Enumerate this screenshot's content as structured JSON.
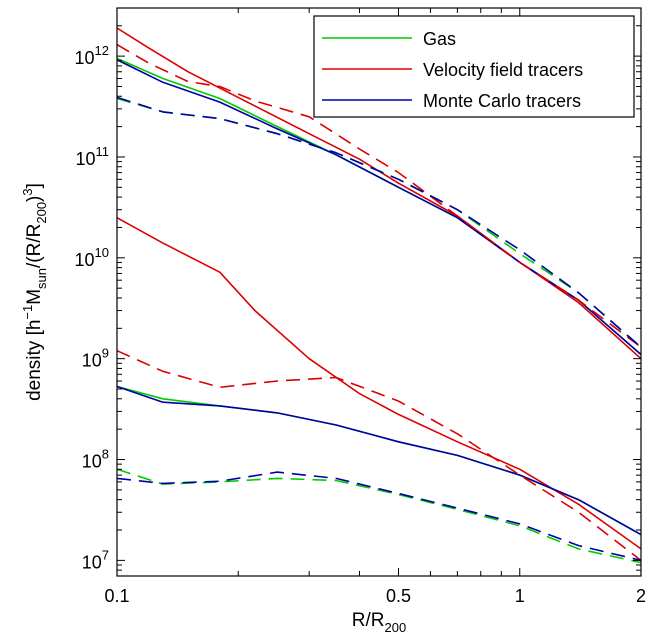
{
  "chart_data": {
    "type": "line",
    "xscale": "log",
    "yscale": "log",
    "xlim": [
      0.1,
      2
    ],
    "ylim": [
      7000000.0,
      3000000000000.0
    ],
    "xlabel": "R/R",
    "xlabel_sub": "200",
    "ylabel_parts": {
      "a": "density [h",
      "sup1": "−1",
      "b": "M",
      "sub1": "sun",
      "c": "/(R/R",
      "sub2": "200",
      "d": ")",
      "sup2": "3",
      "e": "]"
    },
    "x_ticks": [
      {
        "value": 0.1,
        "label": "0.1"
      },
      {
        "value": 0.5,
        "label": "0.5"
      },
      {
        "value": 1,
        "label": "1"
      },
      {
        "value": 2,
        "label": "2"
      }
    ],
    "y_ticks": [
      {
        "value": 10000000.0,
        "base": "10",
        "exp": "7"
      },
      {
        "value": 100000000.0,
        "base": "10",
        "exp": "8"
      },
      {
        "value": 1000000000.0,
        "base": "10",
        "exp": "9"
      },
      {
        "value": 10000000000.0,
        "base": "10",
        "exp": "10"
      },
      {
        "value": 100000000000.0,
        "base": "10",
        "exp": "11"
      },
      {
        "value": 1000000000000.0,
        "base": "10",
        "exp": "12"
      }
    ],
    "grid": false,
    "legend_position": "top-right",
    "legend": [
      {
        "label": "Gas",
        "color": "#00cc00"
      },
      {
        "label": "Velocity field tracers",
        "color": "#dd0000"
      },
      {
        "label": "Monte Carlo tracers",
        "color": "#0000aa"
      }
    ],
    "series": [
      {
        "color": "#00cc00",
        "dash": "solid",
        "points": [
          [
            0.1,
            950000000000.0
          ],
          [
            0.13,
            600000000000.0
          ],
          [
            0.18,
            380000000000.0
          ],
          [
            0.25,
            200000000000.0
          ],
          [
            0.35,
            105000000000.0
          ],
          [
            0.5,
            50000000000.0
          ],
          [
            0.7,
            25000000000.0
          ],
          [
            1.0,
            9000000000.0
          ],
          [
            1.4,
            3800000000.0
          ],
          [
            2.0,
            1100000000.0
          ]
        ]
      },
      {
        "color": "#dd0000",
        "dash": "solid",
        "points": [
          [
            0.1,
            1900000000000.0
          ],
          [
            0.12,
            1200000000000.0
          ],
          [
            0.15,
            700000000000.0
          ],
          [
            0.2,
            390000000000.0
          ],
          [
            0.3,
            170000000000.0
          ],
          [
            0.4,
            95000000000.0
          ],
          [
            0.5,
            55000000000.0
          ],
          [
            0.7,
            26000000000.0
          ],
          [
            1.0,
            9000000000.0
          ],
          [
            1.4,
            3600000000.0
          ],
          [
            2.0,
            1000000000.0
          ]
        ]
      },
      {
        "color": "#0000aa",
        "dash": "solid",
        "points": [
          [
            0.1,
            920000000000.0
          ],
          [
            0.13,
            550000000000.0
          ],
          [
            0.18,
            350000000000.0
          ],
          [
            0.25,
            190000000000.0
          ],
          [
            0.35,
            105000000000.0
          ],
          [
            0.5,
            50000000000.0
          ],
          [
            0.7,
            25000000000.0
          ],
          [
            1.0,
            9000000000.0
          ],
          [
            1.4,
            3800000000.0
          ],
          [
            2.0,
            1100000000.0
          ]
        ]
      },
      {
        "color": "#00cc00",
        "dash": "dashed",
        "points": [
          [
            0.1,
            380000000000.0
          ],
          [
            0.13,
            280000000000.0
          ],
          [
            0.18,
            240000000000.0
          ],
          [
            0.25,
            170000000000.0
          ],
          [
            0.35,
            110000000000.0
          ],
          [
            0.5,
            60000000000.0
          ],
          [
            0.7,
            30000000000.0
          ],
          [
            1.0,
            11000000000.0
          ],
          [
            1.4,
            4500000000.0
          ],
          [
            2.0,
            1300000000.0
          ]
        ]
      },
      {
        "color": "#dd0000",
        "dash": "dashed",
        "points": [
          [
            0.1,
            1300000000000.0
          ],
          [
            0.12,
            850000000000.0
          ],
          [
            0.15,
            560000000000.0
          ],
          [
            0.18,
            500000000000.0
          ],
          [
            0.22,
            360000000000.0
          ],
          [
            0.3,
            250000000000.0
          ],
          [
            0.4,
            120000000000.0
          ],
          [
            0.5,
            70000000000.0
          ],
          [
            0.7,
            26000000000.0
          ],
          [
            1.0,
            9000000000.0
          ],
          [
            1.4,
            3800000000.0
          ],
          [
            2.0,
            1300000000.0
          ]
        ]
      },
      {
        "color": "#0000aa",
        "dash": "dashed",
        "points": [
          [
            0.1,
            390000000000.0
          ],
          [
            0.13,
            280000000000.0
          ],
          [
            0.18,
            240000000000.0
          ],
          [
            0.25,
            170000000000.0
          ],
          [
            0.35,
            110000000000.0
          ],
          [
            0.5,
            60000000000.0
          ],
          [
            0.7,
            30000000000.0
          ],
          [
            1.0,
            12000000000.0
          ],
          [
            1.4,
            4500000000.0
          ],
          [
            2.0,
            1300000000.0
          ]
        ]
      },
      {
        "color": "#00cc00",
        "dash": "solid",
        "points": [
          [
            0.1,
            530000000.0
          ],
          [
            0.13,
            400000000.0
          ],
          [
            0.18,
            340000000.0
          ],
          [
            0.25,
            290000000.0
          ],
          [
            0.35,
            220000000.0
          ],
          [
            0.5,
            150000000.0
          ],
          [
            0.7,
            110000000.0
          ],
          [
            1.0,
            70000000.0
          ],
          [
            1.4,
            40000000.0
          ],
          [
            2.0,
            18000000.0
          ]
        ]
      },
      {
        "color": "#dd0000",
        "dash": "solid",
        "points": [
          [
            0.1,
            25000000000.0
          ],
          [
            0.13,
            14000000000.0
          ],
          [
            0.18,
            7200000000.0
          ],
          [
            0.22,
            3000000000.0
          ],
          [
            0.3,
            1000000000.0
          ],
          [
            0.4,
            450000000.0
          ],
          [
            0.5,
            280000000.0
          ],
          [
            0.7,
            150000000.0
          ],
          [
            1.0,
            80000000.0
          ],
          [
            1.4,
            36000000.0
          ],
          [
            2.0,
            13000000.0
          ]
        ]
      },
      {
        "color": "#0000aa",
        "dash": "solid",
        "points": [
          [
            0.1,
            530000000.0
          ],
          [
            0.13,
            370000000.0
          ],
          [
            0.18,
            340000000.0
          ],
          [
            0.25,
            290000000.0
          ],
          [
            0.35,
            220000000.0
          ],
          [
            0.5,
            150000000.0
          ],
          [
            0.7,
            110000000.0
          ],
          [
            1.0,
            70000000.0
          ],
          [
            1.4,
            40000000.0
          ],
          [
            2.0,
            18000000.0
          ]
        ]
      },
      {
        "color": "#00cc00",
        "dash": "dashed",
        "points": [
          [
            0.1,
            80000000.0
          ],
          [
            0.13,
            57000000.0
          ],
          [
            0.18,
            60000000.0
          ],
          [
            0.25,
            65000000.0
          ],
          [
            0.35,
            62000000.0
          ],
          [
            0.5,
            45000000.0
          ],
          [
            0.7,
            32000000.0
          ],
          [
            1.0,
            22000000.0
          ],
          [
            1.4,
            13000000.0
          ],
          [
            2.0,
            9500000.0
          ]
        ]
      },
      {
        "color": "#dd0000",
        "dash": "dashed",
        "points": [
          [
            0.1,
            1200000000.0
          ],
          [
            0.13,
            750000000.0
          ],
          [
            0.18,
            520000000.0
          ],
          [
            0.25,
            600000000.0
          ],
          [
            0.35,
            650000000.0
          ],
          [
            0.5,
            380000000.0
          ],
          [
            0.7,
            180000000.0
          ],
          [
            1.0,
            70000000.0
          ],
          [
            1.4,
            30000000.0
          ],
          [
            2.0,
            10000000.0
          ]
        ]
      },
      {
        "color": "#0000aa",
        "dash": "dashed",
        "points": [
          [
            0.1,
            65000000.0
          ],
          [
            0.13,
            58000000.0
          ],
          [
            0.18,
            61000000.0
          ],
          [
            0.25,
            75000000.0
          ],
          [
            0.35,
            65000000.0
          ],
          [
            0.5,
            46000000.0
          ],
          [
            0.7,
            33000000.0
          ],
          [
            1.0,
            23000000.0
          ],
          [
            1.4,
            14000000.0
          ],
          [
            2.0,
            10000000.0
          ]
        ]
      }
    ]
  }
}
